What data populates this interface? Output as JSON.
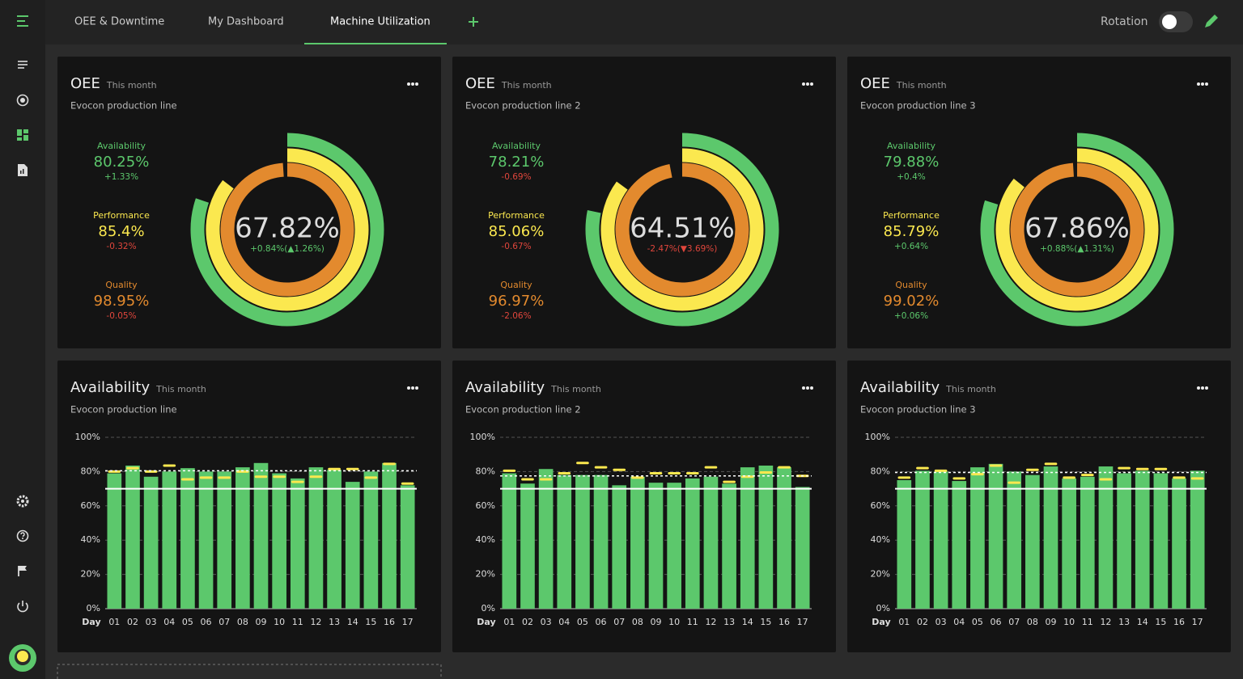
{
  "tabs": [
    "OEE & Downtime",
    "My Dashboard",
    "Machine Utilization"
  ],
  "active_tab": 2,
  "rotation_label": "Rotation",
  "oee_widgets": [
    {
      "title": "OEE",
      "period": "This month",
      "line": "Evocon production line",
      "oee": {
        "value": 67.82,
        "label": "67.82%"
      },
      "oee_change": "+0.84%(▲1.26%)",
      "metrics": [
        {
          "name": "Availability",
          "value": 80.25,
          "label": "80.25%",
          "change": "+1.33%",
          "color": "#5cc86c"
        },
        {
          "name": "Performance",
          "value": 85.4,
          "label": "85.4%",
          "change": "-0.32%",
          "color": "#fbe84f"
        },
        {
          "name": "Quality",
          "value": 98.95,
          "label": "98.95%",
          "change": "-0.05%",
          "color": "#e38a2e"
        }
      ]
    },
    {
      "title": "OEE",
      "period": "This month",
      "line": "Evocon production line 2",
      "oee": {
        "value": 64.51,
        "label": "64.51%"
      },
      "oee_change": "-2.47%(▼3.69%)",
      "metrics": [
        {
          "name": "Availability",
          "value": 78.21,
          "label": "78.21%",
          "change": "-0.69%",
          "color": "#5cc86c"
        },
        {
          "name": "Performance",
          "value": 85.06,
          "label": "85.06%",
          "change": "-0.67%",
          "color": "#fbe84f"
        },
        {
          "name": "Quality",
          "value": 96.97,
          "label": "96.97%",
          "change": "-2.06%",
          "color": "#e38a2e"
        }
      ]
    },
    {
      "title": "OEE",
      "period": "This month",
      "line": "Evocon production line 3",
      "oee": {
        "value": 67.86,
        "label": "67.86%"
      },
      "oee_change": "+0.88%(▲1.31%)",
      "metrics": [
        {
          "name": "Availability",
          "value": 79.88,
          "label": "79.88%",
          "change": "+0.4%",
          "color": "#5cc86c"
        },
        {
          "name": "Performance",
          "value": 85.79,
          "label": "85.79%",
          "change": "+0.64%",
          "color": "#fbe84f"
        },
        {
          "name": "Quality",
          "value": 99.02,
          "label": "99.02%",
          "change": "+0.06%",
          "color": "#e38a2e"
        }
      ]
    }
  ],
  "availability_widgets": [
    {
      "title": "Availability",
      "period": "This month",
      "line": "Evocon production line",
      "chart_data": {
        "type": "bar",
        "x_label": "Day",
        "categories": [
          "01",
          "02",
          "03",
          "04",
          "05",
          "06",
          "07",
          "08",
          "09",
          "10",
          "11",
          "12",
          "13",
          "14",
          "15",
          "16",
          "17"
        ],
        "values": [
          79,
          83.5,
          77,
          80,
          82,
          80,
          80,
          82.5,
          85,
          79,
          76,
          82.5,
          81,
          74,
          80,
          85,
          72
        ],
        "marker_values": [
          80,
          82,
          80,
          83.5,
          75.5,
          76.5,
          76.5,
          80,
          77,
          77,
          74,
          77,
          81.5,
          81.5,
          76.5,
          84.5,
          73
        ],
        "average": 80.5,
        "target": 70,
        "color": "#5cc86c",
        "marker_color": "#fbe84f",
        "ylim": [
          0,
          100
        ],
        "yticks": [
          {
            "value": 0,
            "label": "0%"
          },
          {
            "value": 20,
            "label": "20%"
          },
          {
            "value": 40,
            "label": "40%"
          },
          {
            "value": 60,
            "label": "60%"
          },
          {
            "value": 80,
            "label": "80%"
          },
          {
            "value": 100,
            "label": "100%"
          }
        ],
        "grid": true
      }
    },
    {
      "title": "Availability",
      "period": "This month",
      "line": "Evocon production line 2",
      "chart_data": {
        "type": "bar",
        "x_label": "Day",
        "categories": [
          "01",
          "02",
          "03",
          "04",
          "05",
          "06",
          "07",
          "08",
          "09",
          "10",
          "11",
          "12",
          "13",
          "14",
          "15",
          "16",
          "17"
        ],
        "values": [
          79,
          73,
          81.5,
          78,
          78,
          78,
          72,
          77,
          73.5,
          73.5,
          76,
          77,
          73,
          82.5,
          83.5,
          82.5,
          71
        ],
        "marker_values": [
          80.5,
          75.5,
          75.5,
          79,
          85,
          82.5,
          81,
          76.5,
          79,
          79,
          79,
          82.5,
          74,
          77,
          79.5,
          82.5,
          77.5
        ],
        "average": 77.5,
        "target": 70,
        "color": "#5cc86c",
        "marker_color": "#fbe84f",
        "ylim": [
          0,
          100
        ],
        "yticks": [
          {
            "value": 0,
            "label": "0%"
          },
          {
            "value": 20,
            "label": "20%"
          },
          {
            "value": 40,
            "label": "40%"
          },
          {
            "value": 60,
            "label": "60%"
          },
          {
            "value": 80,
            "label": "80%"
          },
          {
            "value": 100,
            "label": "100%"
          }
        ],
        "grid": true
      }
    },
    {
      "title": "Availability",
      "period": "This month",
      "line": "Evocon production line 3",
      "chart_data": {
        "type": "bar",
        "x_label": "Day",
        "categories": [
          "01",
          "02",
          "03",
          "04",
          "05",
          "06",
          "07",
          "08",
          "09",
          "10",
          "11",
          "12",
          "13",
          "14",
          "15",
          "16",
          "17"
        ],
        "values": [
          75,
          80.5,
          80,
          74.5,
          82.5,
          84.5,
          80,
          78,
          83,
          76,
          77,
          83,
          79,
          80.5,
          79,
          76,
          80.5
        ],
        "marker_values": [
          76.5,
          82,
          80.5,
          76,
          78.5,
          83.5,
          73.5,
          81,
          84.5,
          76.5,
          78,
          75.5,
          82,
          81.5,
          81.5,
          76.5,
          76
        ],
        "average": 79.5,
        "target": 70,
        "color": "#5cc86c",
        "marker_color": "#fbe84f",
        "ylim": [
          0,
          100
        ],
        "yticks": [
          {
            "value": 0,
            "label": "0%"
          },
          {
            "value": 20,
            "label": "20%"
          },
          {
            "value": 40,
            "label": "40%"
          },
          {
            "value": 60,
            "label": "60%"
          },
          {
            "value": 80,
            "label": "80%"
          },
          {
            "value": 100,
            "label": "100%"
          }
        ],
        "grid": true
      }
    }
  ]
}
